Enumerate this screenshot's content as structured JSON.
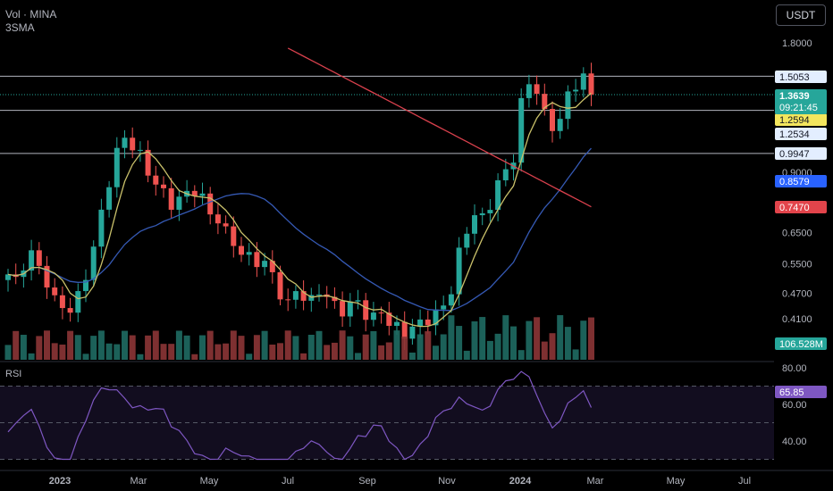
{
  "header": {
    "symbol_line": "Vol · MINA",
    "indicator_line": "3SMA",
    "currency_button": "USDT",
    "rsi_label": "RSI"
  },
  "colors": {
    "up": "#26a69a",
    "down": "#ef5350",
    "sma_fast": "#c9c06a",
    "sma_mid": "#3559b4",
    "sma_slow": "#d9414d",
    "rsi": "#7e57c2",
    "grid_line": "#b2b5be"
  },
  "chart_data": {
    "type": "candlestick",
    "price_axis_labels": [
      "1.8000",
      "0.9000",
      "0.6500",
      "0.5500",
      "0.4700",
      "0.4100"
    ],
    "time_axis_labels": [
      "2023",
      "Mar",
      "May",
      "Jul",
      "Sep",
      "Nov",
      "2024",
      "Mar",
      "May",
      "Jul"
    ],
    "price_scale": "log",
    "horizontal_levels": [
      1.5053,
      1.2534,
      0.9947
    ],
    "current_price": {
      "value": "1.3639",
      "countdown": "09:21:45"
    },
    "price_badges": [
      {
        "value": "1.5053",
        "style": "level"
      },
      {
        "value": "1.2594",
        "style": "sma_fast"
      },
      {
        "value": "1.2534",
        "style": "level"
      },
      {
        "value": "0.9947",
        "style": "level"
      },
      {
        "value": "0.8579",
        "style": "sma_mid"
      },
      {
        "value": "0.7470",
        "style": "sma_slow"
      },
      {
        "value": "106.528M",
        "style": "volume"
      }
    ],
    "rsi": {
      "axis_labels": [
        "80.00",
        "60.00",
        "40.00"
      ],
      "bands": [
        70,
        50,
        30
      ],
      "last_value": "65.85"
    }
  }
}
